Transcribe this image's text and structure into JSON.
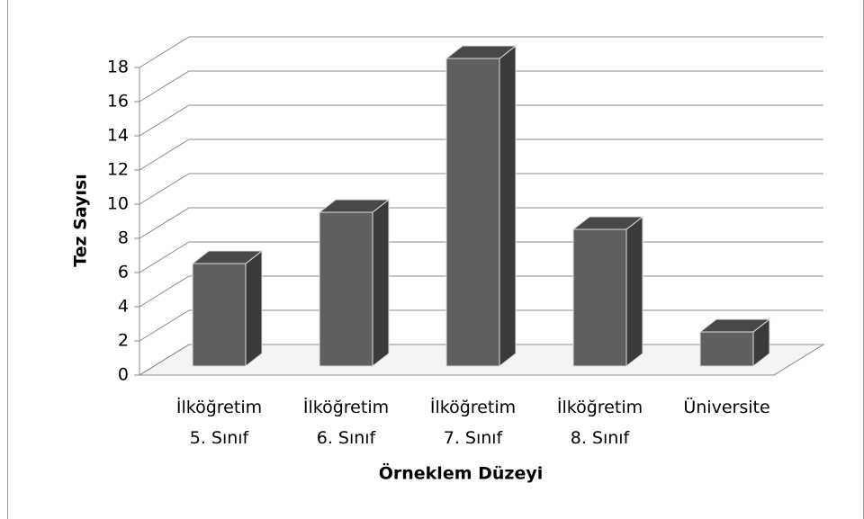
{
  "chart_data": {
    "type": "bar3d",
    "x_label": "Örneklem Düzeyi",
    "y_label": "Tez Sayısı",
    "categories": [
      "İlköğretim\n5. Sınıf",
      "İlköğretim\n6. Sınıf",
      "İlköğretim\n7. Sınıf",
      "İlköğretim\n8. Sınıf",
      "Üniversite"
    ],
    "values": [
      6,
      9,
      18,
      8,
      2
    ],
    "color": "#5f5f5f",
    "ylim": [
      0,
      18
    ],
    "yticks": [
      0,
      2,
      4,
      6,
      8,
      10,
      12,
      14,
      16,
      18
    ],
    "grid": true
  }
}
